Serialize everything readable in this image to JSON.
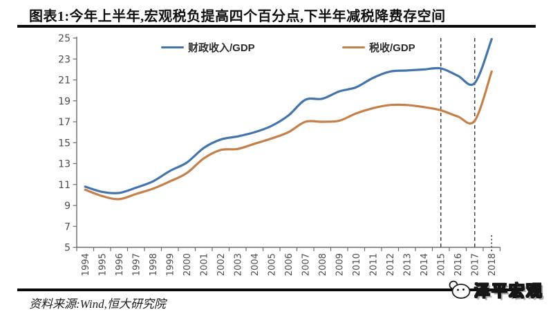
{
  "title": "图表1:今年上半年,宏观税负提高四个百分点,下半年减税降费存空间",
  "source_note": "资料来源:Wind,恒大研究院",
  "logo": {
    "text": "泽平宏观",
    "icon": "cartoon-face-icon"
  },
  "colors": {
    "fiscal_line": "#4374ac",
    "tax_line": "#c5804a",
    "axis": "#6b6b6b",
    "tick_label": "#4d4d4d",
    "dashed_marker": "#3f3f3f",
    "rule": "#0a0a0a"
  },
  "chart_data": {
    "type": "line",
    "title": "图表1:今年上半年,宏观税负提高四个百分点,下半年减税降费存空间",
    "x": [
      1994,
      1995,
      1996,
      1997,
      1998,
      1999,
      2000,
      2001,
      2002,
      2003,
      2004,
      2005,
      2006,
      2007,
      2008,
      2009,
      2010,
      2011,
      2012,
      2013,
      2014,
      2015,
      2016,
      2017,
      2018
    ],
    "x_labels": [
      "1994",
      "1995",
      "1996",
      "1997",
      "1998",
      "1999",
      "2000",
      "2001",
      "2002",
      "2003",
      "2004",
      "2005",
      "2006",
      "2007",
      "2008",
      "2009",
      "2010",
      "2011",
      "2012",
      "2013",
      "2014",
      "2015",
      "2016",
      "2017",
      "2018"
    ],
    "series": [
      {
        "name": "财政收入/GDP",
        "color": "#4374ac",
        "values": [
          10.8,
          10.3,
          10.2,
          10.7,
          11.3,
          12.3,
          13.1,
          14.5,
          15.3,
          15.6,
          16.0,
          16.6,
          17.6,
          19.1,
          19.2,
          19.9,
          20.3,
          21.2,
          21.8,
          21.9,
          22.0,
          22.1,
          21.4,
          20.7,
          24.9
        ]
      },
      {
        "name": "税收/GDP",
        "color": "#c5804a",
        "values": [
          10.5,
          9.9,
          9.6,
          10.1,
          10.6,
          11.3,
          12.1,
          13.5,
          14.3,
          14.4,
          14.9,
          15.4,
          16.0,
          17.0,
          17.0,
          17.1,
          17.8,
          18.3,
          18.6,
          18.6,
          18.4,
          18.1,
          17.5,
          17.1,
          21.8
        ]
      }
    ],
    "ylim": [
      5,
      25
    ],
    "y_ticks": [
      5,
      7,
      9,
      11,
      13,
      15,
      17,
      19,
      21,
      23,
      25
    ],
    "grid": false,
    "legend_position": "top-inside",
    "dashed_vlines_years": [
      2015,
      2017
    ],
    "partial_data_marker_year": 2018
  }
}
